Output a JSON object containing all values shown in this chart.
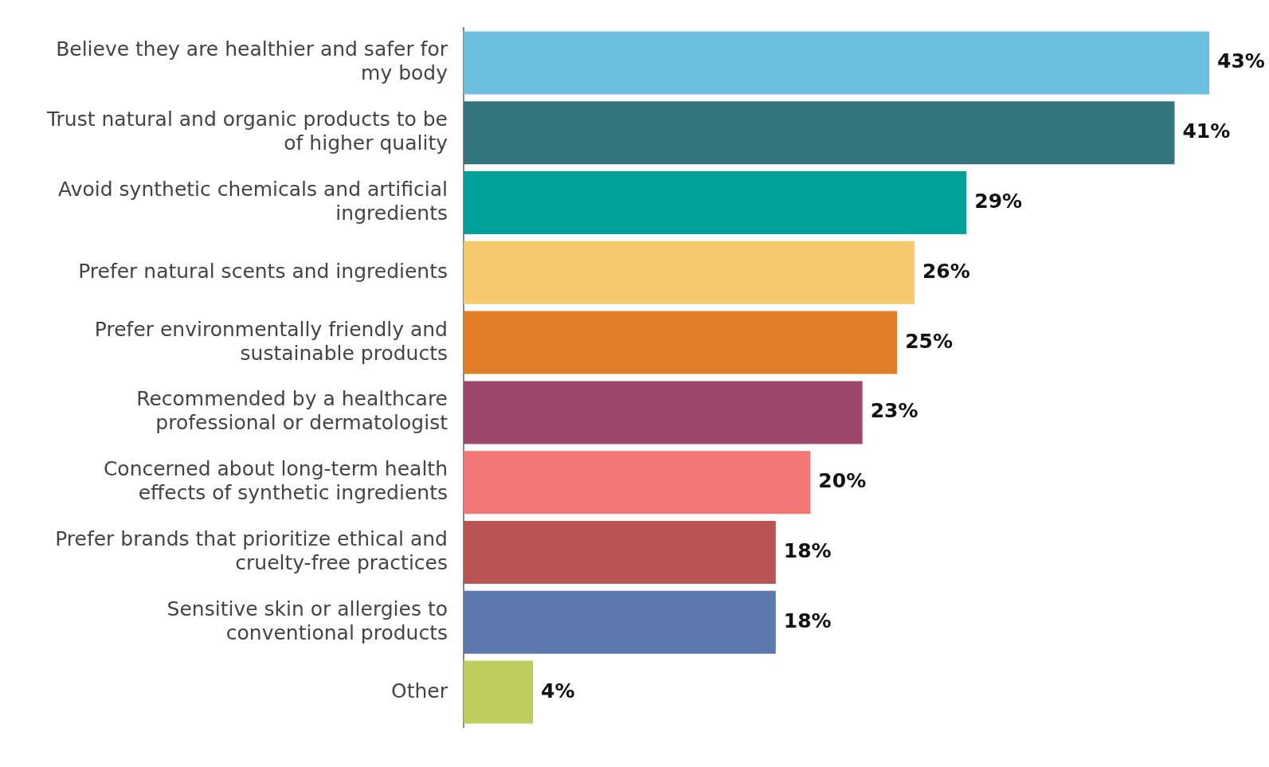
{
  "chart_data": {
    "type": "bar",
    "orientation": "horizontal",
    "categories": [
      "Believe they are healthier and safer for my body",
      "Trust natural and organic products to be of higher quality",
      "Avoid synthetic chemicals and artificial ingredients",
      "Prefer natural scents and ingredients",
      "Prefer environmentally friendly and sustainable products",
      "Recommended by a healthcare professional or dermatologist",
      "Concerned about long-term health effects of synthetic ingredients",
      "Prefer brands that prioritize ethical and cruelty-free practices",
      "Sensitive skin or allergies to conventional products",
      "Other"
    ],
    "values": [
      43,
      41,
      29,
      26,
      25,
      23,
      20,
      18,
      18,
      4
    ],
    "value_labels": [
      "43%",
      "41%",
      "29%",
      "26%",
      "25%",
      "23%",
      "20%",
      "18%",
      "18%",
      "4%"
    ],
    "colors": [
      "#6dbfdf",
      "#35767e",
      "#00a19b",
      "#f5ca6e",
      "#e07d26",
      "#9e476d",
      "#f17774",
      "#b85452",
      "#5c78ae",
      "#bfcd5d"
    ],
    "tick_labels": "y",
    "grid": false,
    "legend": false
  }
}
